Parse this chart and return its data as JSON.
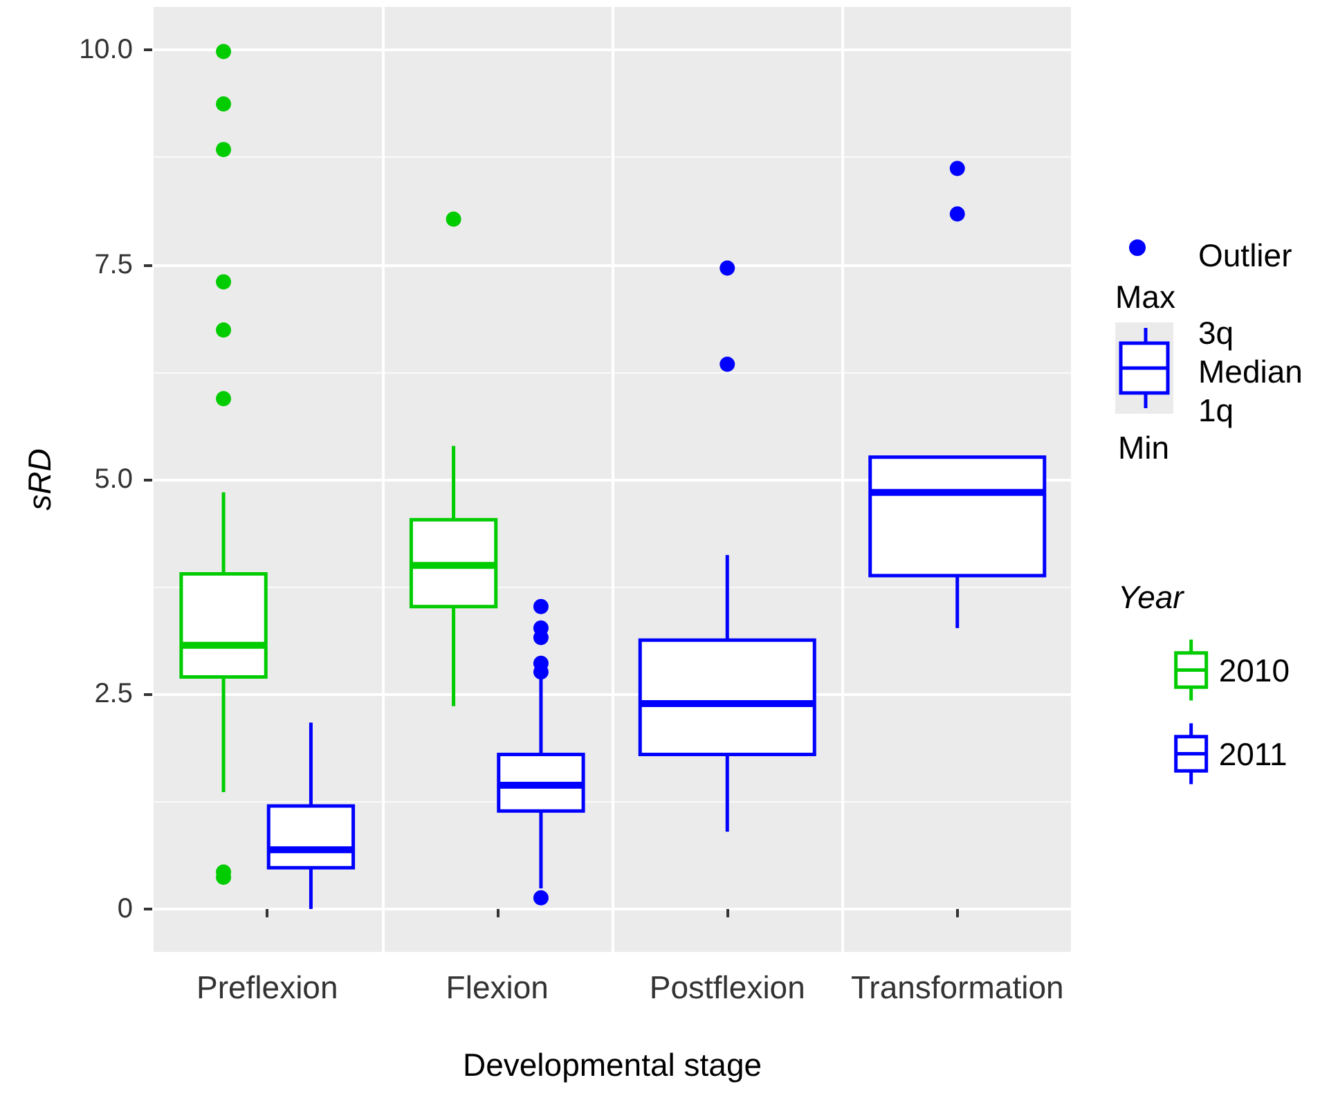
{
  "chart_data": {
    "type": "box",
    "xlabel": "Developmental stage",
    "ylabel": "sRD",
    "legend_title": "Year",
    "categories": [
      "Preflexion",
      "Flexion",
      "Postflexion",
      "Transformation"
    ],
    "series": [
      {
        "name": "2010",
        "color": "#00cc00",
        "boxes": [
          {
            "low": 1.36,
            "q1": 2.7,
            "median": 3.07,
            "q3": 3.9,
            "high": 4.85,
            "outliers": [
              9.98,
              9.37,
              8.84,
              7.3,
              6.74,
              5.94,
              0.43,
              0.37
            ]
          },
          {
            "low": 2.36,
            "q1": 3.52,
            "median": 4.0,
            "q3": 4.53,
            "high": 5.39,
            "outliers": [
              8.03
            ]
          },
          null,
          null
        ]
      },
      {
        "name": "2011",
        "color": "#0000ff",
        "boxes": [
          {
            "low": 0,
            "q1": 0.48,
            "median": 0.69,
            "q3": 1.2,
            "high": 2.17
          },
          {
            "low": 0.24,
            "q1": 1.14,
            "median": 1.44,
            "q3": 1.8,
            "high": 2.7,
            "outliers": [
              3.52,
              3.27,
              3.16,
              2.86,
              2.76,
              0.13
            ]
          },
          {
            "low": 0.9,
            "q1": 1.8,
            "median": 2.39,
            "q3": 3.13,
            "high": 4.12,
            "outliers": [
              7.46,
              6.34
            ]
          },
          {
            "low": 3.27,
            "q1": 3.88,
            "median": 4.85,
            "q3": 5.26,
            "high": 5.26,
            "outliers": [
              8.62,
              8.09
            ]
          }
        ]
      }
    ],
    "ylim": [
      -0.5,
      10.5
    ],
    "yticks": [
      0,
      {
        "value": 2.5,
        "label": "2.5"
      },
      {
        "value": 5,
        "label": "5.0"
      },
      {
        "value": 7.5,
        "label": "7.5"
      },
      {
        "value": 10,
        "label": "10.0"
      }
    ],
    "grid": true,
    "legend": "right",
    "marker": "circle",
    "annotations": [
      "Outlier",
      "Max",
      "3q",
      "Median",
      "1q",
      "Min"
    ]
  }
}
